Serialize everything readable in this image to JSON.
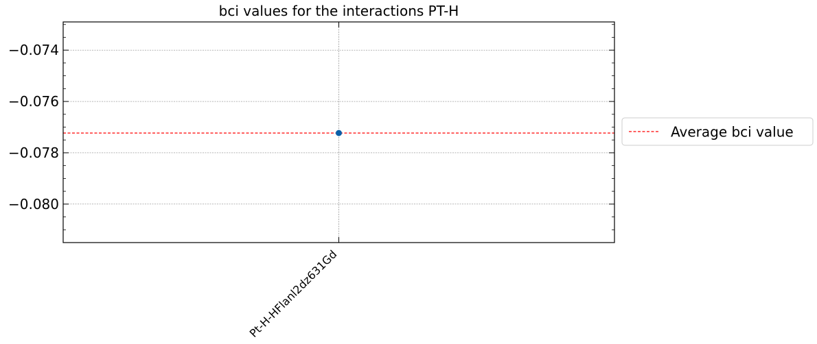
{
  "chart_data": {
    "type": "scatter",
    "title": "bci values for the interactions PT-H",
    "xlabel": "",
    "ylabel": "",
    "categories": [
      "Pt-H-HFlanl2dz631Gd"
    ],
    "series": [
      {
        "values": [
          -0.07723
        ],
        "color": "#0b5fa8"
      }
    ],
    "reference_lines": [
      {
        "name": "Average bci value",
        "value": -0.07723,
        "color": "#ff0000",
        "style": "dashed"
      }
    ],
    "ylim": [
      -0.0815,
      -0.0729
    ],
    "yticks": [
      -0.074,
      -0.076,
      -0.078,
      -0.08
    ],
    "ytick_labels": [
      "−0.074",
      "−0.076",
      "−0.078",
      "−0.080"
    ],
    "grid": true,
    "legend": {
      "position": "outside-right",
      "entries": [
        "Average bci value"
      ]
    }
  }
}
